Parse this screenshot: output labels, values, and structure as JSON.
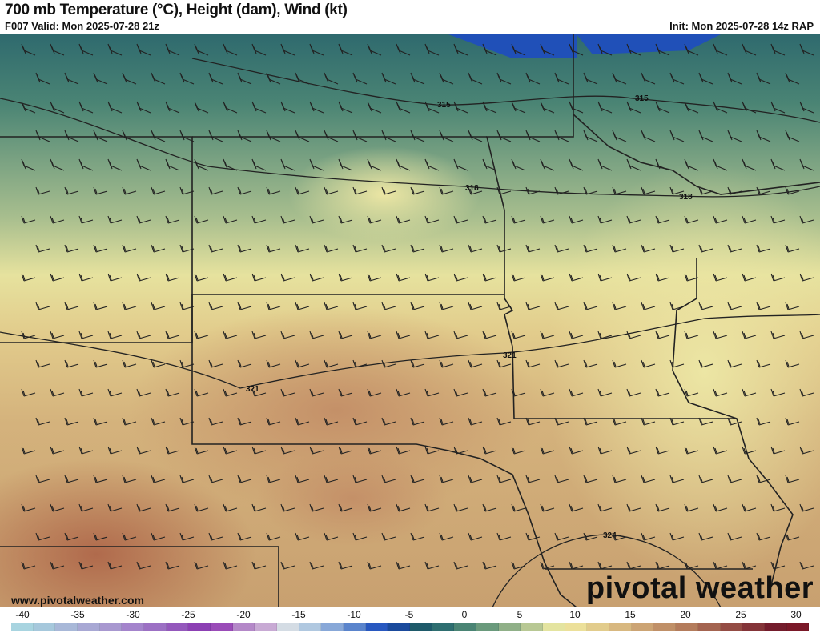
{
  "header": {
    "title": "700 mb Temperature (°C), Height (dam), Wind (kt)",
    "valid": "F007 Valid: Mon 2025-07-28 21z",
    "init": "Init: Mon 2025-07-28 14z RAP"
  },
  "footer": {
    "website": "www.pivotalweather.com",
    "brand": "pivotal weather"
  },
  "colorbar": {
    "ticks": [
      "-40",
      "-35",
      "-30",
      "-25",
      "-20",
      "-15",
      "-10",
      "-5",
      "0",
      "5",
      "10",
      "15",
      "20",
      "25",
      "30"
    ],
    "colors": [
      "#a8d4e0",
      "#a6c8dc",
      "#a8b8d8",
      "#a8a8d4",
      "#a898d0",
      "#a484cc",
      "#9c70c4",
      "#9458bc",
      "#8c40b4",
      "#9a4cb8",
      "#b488c8",
      "#c8aad4",
      "#d4dce4",
      "#b0c8e0",
      "#88a8d8",
      "#5a84cc",
      "#2858c0",
      "#1a4a9c",
      "#1e5a6a",
      "#2e6e70",
      "#4a8474",
      "#6a9a7c",
      "#90b088",
      "#b8c894",
      "#e4e4a0",
      "#ece09a",
      "#e2cc8c",
      "#d8b880",
      "#cca474",
      "#c09068",
      "#b47c5c",
      "#a46450",
      "#944c44",
      "#843438",
      "#741c2c",
      "#7a1828"
    ]
  },
  "map": {
    "contour_labels": [
      "315",
      "315",
      "318",
      "318",
      "321",
      "321",
      "324"
    ]
  }
}
